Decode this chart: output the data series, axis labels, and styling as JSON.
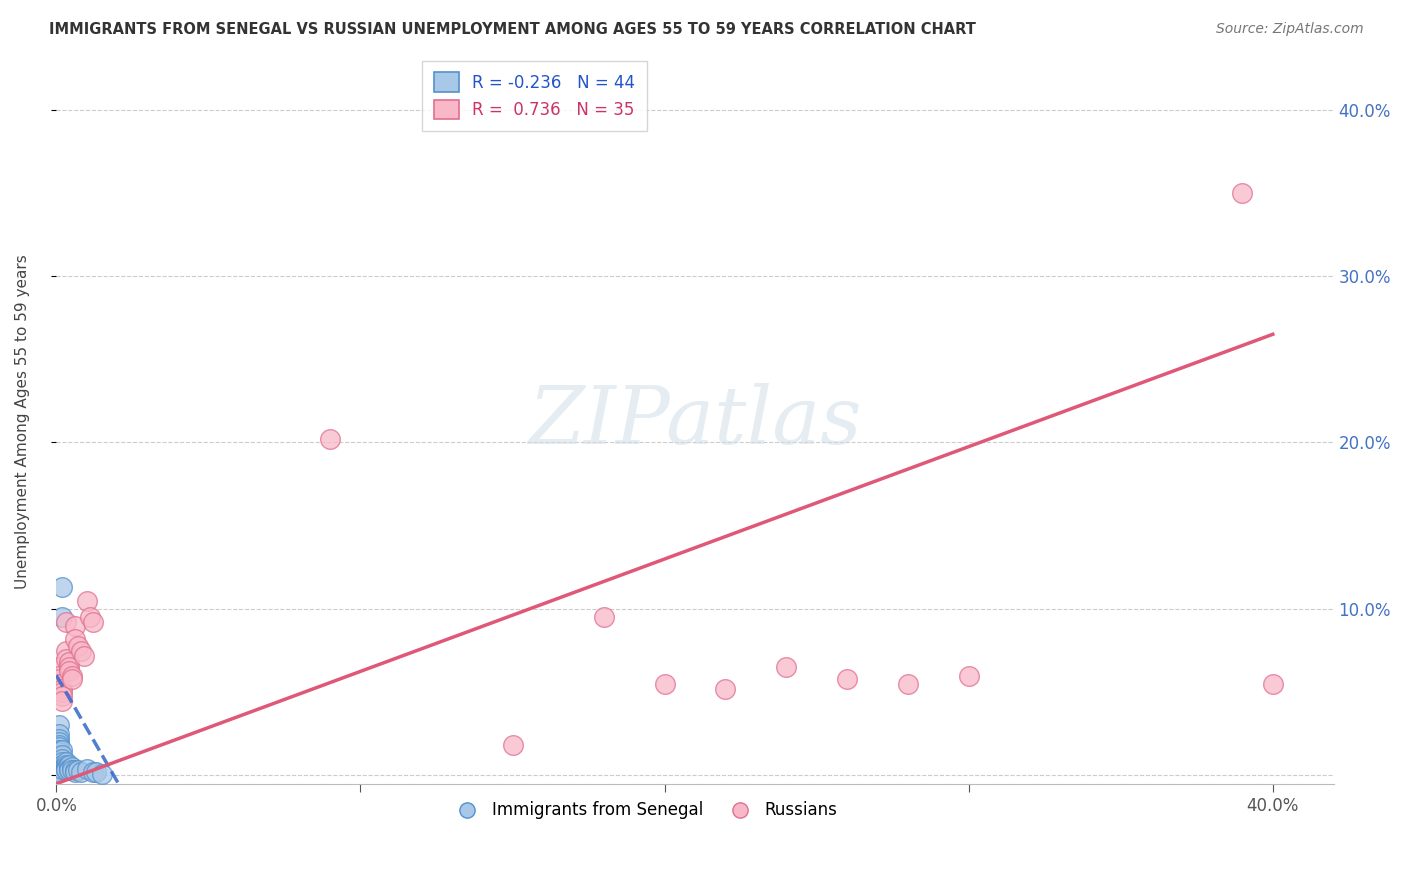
{
  "title": "IMMIGRANTS FROM SENEGAL VS RUSSIAN UNEMPLOYMENT AMONG AGES 55 TO 59 YEARS CORRELATION CHART",
  "source": "Source: ZipAtlas.com",
  "ylabel": "Unemployment Among Ages 55 to 59 years",
  "xlim": [
    0.0,
    0.42
  ],
  "ylim": [
    -0.005,
    0.43
  ],
  "yticks": [
    0.0,
    0.1,
    0.2,
    0.3,
    0.4
  ],
  "right_ytick_labels": [
    "",
    "10.0%",
    "20.0%",
    "30.0%",
    "40.0%"
  ],
  "legend_label1": "Immigrants from Senegal",
  "legend_label2": "Russians",
  "watermark": "ZIPatlas",
  "blue_color": "#a8c8e8",
  "blue_edge_color": "#5590cc",
  "pink_color": "#f8b8c8",
  "pink_edge_color": "#e07090",
  "blue_line_color": "#3366cc",
  "pink_line_color": "#e05878",
  "blue_scatter": [
    [
      0.001,
      0.03
    ],
    [
      0.001,
      0.025
    ],
    [
      0.001,
      0.022
    ],
    [
      0.001,
      0.02
    ],
    [
      0.001,
      0.018
    ],
    [
      0.001,
      0.017
    ],
    [
      0.001,
      0.015
    ],
    [
      0.001,
      0.014
    ],
    [
      0.001,
      0.012
    ],
    [
      0.001,
      0.01
    ],
    [
      0.001,
      0.009
    ],
    [
      0.001,
      0.008
    ],
    [
      0.001,
      0.007
    ],
    [
      0.001,
      0.006
    ],
    [
      0.001,
      0.005
    ],
    [
      0.001,
      0.004
    ],
    [
      0.001,
      0.003
    ],
    [
      0.001,
      0.002
    ],
    [
      0.002,
      0.113
    ],
    [
      0.002,
      0.095
    ],
    [
      0.002,
      0.015
    ],
    [
      0.002,
      0.012
    ],
    [
      0.002,
      0.01
    ],
    [
      0.002,
      0.008
    ],
    [
      0.002,
      0.006
    ],
    [
      0.002,
      0.004
    ],
    [
      0.003,
      0.008
    ],
    [
      0.003,
      0.006
    ],
    [
      0.003,
      0.005
    ],
    [
      0.003,
      0.004
    ],
    [
      0.003,
      0.003
    ],
    [
      0.004,
      0.006
    ],
    [
      0.004,
      0.004
    ],
    [
      0.004,
      0.003
    ],
    [
      0.005,
      0.005
    ],
    [
      0.005,
      0.003
    ],
    [
      0.006,
      0.003
    ],
    [
      0.006,
      0.002
    ],
    [
      0.007,
      0.003
    ],
    [
      0.008,
      0.002
    ],
    [
      0.01,
      0.004
    ],
    [
      0.012,
      0.002
    ],
    [
      0.013,
      0.002
    ],
    [
      0.015,
      0.001
    ]
  ],
  "pink_scatter": [
    [
      0.001,
      0.065
    ],
    [
      0.001,
      0.06
    ],
    [
      0.001,
      0.058
    ],
    [
      0.001,
      0.055
    ],
    [
      0.002,
      0.052
    ],
    [
      0.002,
      0.05
    ],
    [
      0.002,
      0.048
    ],
    [
      0.002,
      0.045
    ],
    [
      0.003,
      0.092
    ],
    [
      0.003,
      0.075
    ],
    [
      0.003,
      0.07
    ],
    [
      0.004,
      0.068
    ],
    [
      0.004,
      0.065
    ],
    [
      0.004,
      0.063
    ],
    [
      0.005,
      0.06
    ],
    [
      0.005,
      0.058
    ],
    [
      0.006,
      0.09
    ],
    [
      0.006,
      0.082
    ],
    [
      0.007,
      0.078
    ],
    [
      0.008,
      0.075
    ],
    [
      0.009,
      0.072
    ],
    [
      0.01,
      0.105
    ],
    [
      0.011,
      0.095
    ],
    [
      0.012,
      0.092
    ],
    [
      0.09,
      0.202
    ],
    [
      0.15,
      0.018
    ],
    [
      0.18,
      0.095
    ],
    [
      0.2,
      0.055
    ],
    [
      0.22,
      0.052
    ],
    [
      0.24,
      0.065
    ],
    [
      0.26,
      0.058
    ],
    [
      0.28,
      0.055
    ],
    [
      0.3,
      0.06
    ],
    [
      0.39,
      0.35
    ],
    [
      0.4,
      0.055
    ]
  ],
  "blue_line_x": [
    0.0,
    0.022
  ],
  "blue_line_y": [
    0.06,
    -0.01
  ],
  "pink_line_x": [
    0.0,
    0.4
  ],
  "pink_line_y": [
    -0.005,
    0.265
  ]
}
